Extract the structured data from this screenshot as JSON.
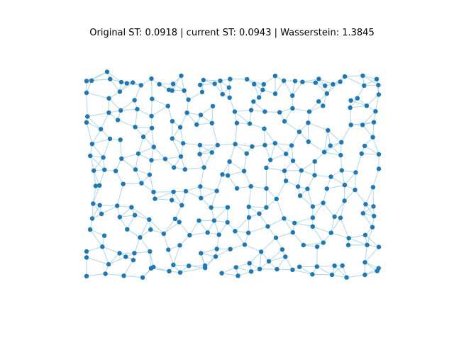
{
  "figure": {
    "title": "Original ST: 0.0918 | current ST: 0.0943 | Wasserstein: 1.3845",
    "node_color": "#1f77b4",
    "edge_color": "#add8e6",
    "background": "#ffffff"
  }
}
